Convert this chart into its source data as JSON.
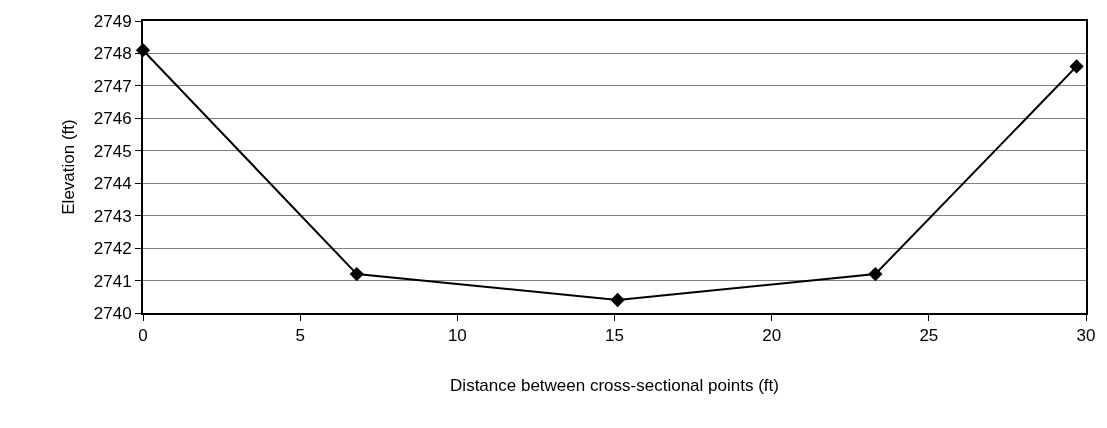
{
  "chart_data": {
    "type": "line",
    "xlabel": "Distance between cross-sectional points (ft)",
    "ylabel": "Elevation (ft)",
    "x": [
      0,
      6.8,
      15.1,
      23.3,
      29.7
    ],
    "series": [
      {
        "color": "#000000",
        "values": [
          2748.1,
          2741.2,
          2740.4,
          2741.2,
          2747.6
        ]
      }
    ],
    "xlim": [
      0,
      30
    ],
    "xticks": [
      0,
      5,
      10,
      15,
      20,
      25,
      30
    ],
    "ylim": [
      2740,
      2749
    ],
    "yticks": [
      2740,
      2741,
      2742,
      2743,
      2744,
      2745,
      2746,
      2747,
      2748,
      2749
    ],
    "grid": "y",
    "legend": false,
    "marker": "diamond",
    "line_style": "solid"
  }
}
